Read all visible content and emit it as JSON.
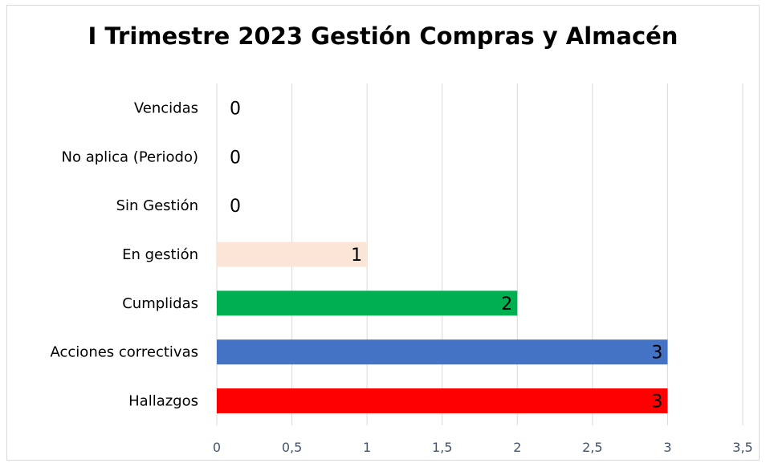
{
  "chart_data": {
    "type": "bar",
    "orientation": "horizontal",
    "title": "I Trimestre 2023 Gestión Compras y Almacén",
    "xlabel": "",
    "ylabel": "",
    "xlim": [
      0,
      3.5
    ],
    "x_ticks": [
      {
        "value": 0,
        "label": "0"
      },
      {
        "value": 0.5,
        "label": "0,5"
      },
      {
        "value": 1,
        "label": "1"
      },
      {
        "value": 1.5,
        "label": "1,5"
      },
      {
        "value": 2,
        "label": "2"
      },
      {
        "value": 2.5,
        "label": "2,5"
      },
      {
        "value": 3,
        "label": "3"
      },
      {
        "value": 3.5,
        "label": "3,5"
      }
    ],
    "grid": true,
    "legend": "none",
    "categories": [
      "Vencidas",
      "No aplica (Periodo)",
      "Sin Gestión",
      "En gestión",
      "Cumplidas",
      "Acciones correctivas",
      "Hallazgos"
    ],
    "values": [
      0,
      0,
      0,
      1,
      2,
      3,
      3
    ],
    "data_labels": [
      "0",
      "0",
      "0",
      "1",
      "2",
      "3",
      "3"
    ],
    "colors": [
      "#ffffff",
      "#ffffff",
      "#ffffff",
      "#fbe5d6",
      "#00b050",
      "#4472c4",
      "#ff0000"
    ]
  }
}
